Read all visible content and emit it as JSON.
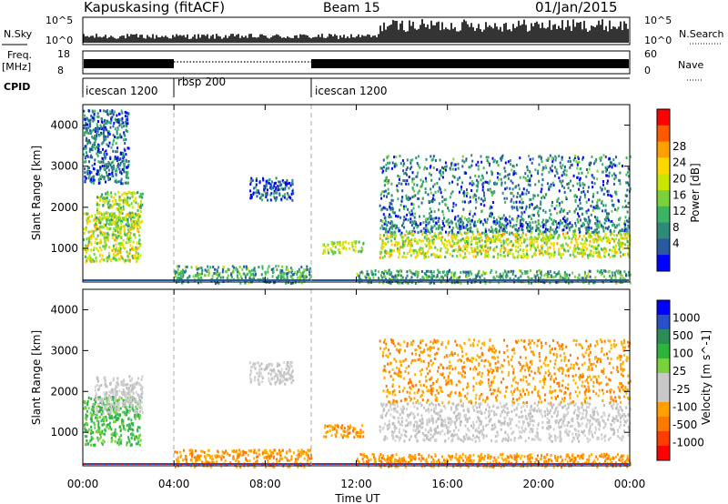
{
  "header": {
    "station": "Kapuskasing (fitACF)",
    "beam": "Beam 15",
    "date": "01/Jan/2015"
  },
  "strip_labels": {
    "nsky": "N.Sky",
    "nsky_ticks": [
      "10^5",
      "10^0"
    ],
    "nsearch": "N.Search",
    "nsearch_ticks": [
      "10^5",
      "10^0"
    ],
    "freq": "Freq.",
    "freq_unit": "[MHz]",
    "freq_ticks": [
      "18",
      "8"
    ],
    "nave": "Nave",
    "nave_ticks": [
      "60",
      "0"
    ],
    "cpid": "CPID"
  },
  "cpid_segments": [
    {
      "label": "icescan 1200",
      "start_hour": 0,
      "end_hour": 4
    },
    {
      "label": "rbsp 200",
      "start_hour": 4,
      "end_hour": 10
    },
    {
      "label": "icescan 1200",
      "start_hour": 10,
      "end_hour": 24
    }
  ],
  "chart_data": [
    {
      "type": "heatmap",
      "panel": "power",
      "ylabel": "Slant Range [km]",
      "colorbar_label": "Power [dB]",
      "colorbar_ticks": [
        "28",
        "24",
        "20",
        "16",
        "12",
        "8",
        "4"
      ],
      "colorbar_colors": [
        "#ff0000",
        "#ff5a00",
        "#ffa000",
        "#ffd700",
        "#c8e600",
        "#78d23c",
        "#3cb464",
        "#2e8b7a",
        "#285aa0",
        "#0000ff"
      ],
      "ylim": [
        180,
        4500
      ],
      "yticks": [
        1000,
        2000,
        3000,
        4000
      ],
      "xlim": [
        0,
        24
      ],
      "xticks": [
        "00:00",
        "04:00",
        "08:00",
        "12:00",
        "16:00",
        "20:00",
        "00:00"
      ],
      "regions": [
        {
          "t0": 0.0,
          "t1": 2.5,
          "r0": 700,
          "r1": 1900,
          "level": 0.55
        },
        {
          "t0": 0.5,
          "t1": 2.6,
          "r0": 1500,
          "r1": 2400,
          "level": 0.45
        },
        {
          "t0": 0.0,
          "t1": 2.0,
          "r0": 2600,
          "r1": 4400,
          "level": 0.15
        },
        {
          "t0": 4.0,
          "t1": 10.0,
          "r0": 180,
          "r1": 600,
          "level": 0.3
        },
        {
          "t0": 7.3,
          "t1": 9.2,
          "r0": 2200,
          "r1": 2750,
          "level": 0.1
        },
        {
          "t0": 10.5,
          "t1": 12.3,
          "r0": 900,
          "r1": 1200,
          "level": 0.5
        },
        {
          "t0": 13.0,
          "t1": 24.0,
          "r0": 1400,
          "r1": 1750,
          "level": 0.2
        },
        {
          "t0": 13.0,
          "t1": 24.0,
          "r0": 800,
          "r1": 1400,
          "level": 0.55
        },
        {
          "t0": 13.0,
          "t1": 24.0,
          "r0": 1750,
          "r1": 3300,
          "level": 0.2
        },
        {
          "t0": 12.0,
          "t1": 24.0,
          "r0": 180,
          "r1": 500,
          "level": 0.3
        }
      ]
    },
    {
      "type": "heatmap",
      "panel": "velocity",
      "ylabel": "Slant Range [km]",
      "colorbar_label": "Velocity [m s^-1]",
      "colorbar_ticks": [
        "1000",
        "500",
        "100",
        "25",
        "-25",
        "-100",
        "-500",
        "-1000"
      ],
      "colorbar_colors": [
        "#0000ff",
        "#2850c8",
        "#2e8b57",
        "#2eb43c",
        "#78d23c",
        "#c8c8c8",
        "#c8c8c8",
        "#ffa000",
        "#ff7800",
        "#ff3c00",
        "#ff0000"
      ],
      "ylim": [
        180,
        4500
      ],
      "yticks": [
        1000,
        2000,
        3000,
        4000
      ],
      "xlim": [
        0,
        24
      ],
      "xticks": [
        "00:00",
        "04:00",
        "08:00",
        "12:00",
        "16:00",
        "20:00",
        "00:00"
      ],
      "xlabel": "Time UT",
      "regions": [
        {
          "t0": 0.0,
          "t1": 2.5,
          "r0": 700,
          "r1": 1900,
          "class": "green"
        },
        {
          "t0": 0.5,
          "t1": 2.6,
          "r0": 1500,
          "r1": 2400,
          "class": "grey"
        },
        {
          "t0": 4.0,
          "t1": 10.0,
          "r0": 180,
          "r1": 600,
          "class": "orange"
        },
        {
          "t0": 7.3,
          "t1": 9.2,
          "r0": 2200,
          "r1": 2750,
          "class": "grey"
        },
        {
          "t0": 10.5,
          "t1": 12.3,
          "r0": 900,
          "r1": 1200,
          "class": "orange"
        },
        {
          "t0": 13.0,
          "t1": 24.0,
          "r0": 800,
          "r1": 1750,
          "class": "grey"
        },
        {
          "t0": 13.0,
          "t1": 24.0,
          "r0": 1750,
          "r1": 3300,
          "class": "orange"
        },
        {
          "t0": 12.0,
          "t1": 24.0,
          "r0": 180,
          "r1": 500,
          "class": "orange"
        }
      ]
    }
  ]
}
